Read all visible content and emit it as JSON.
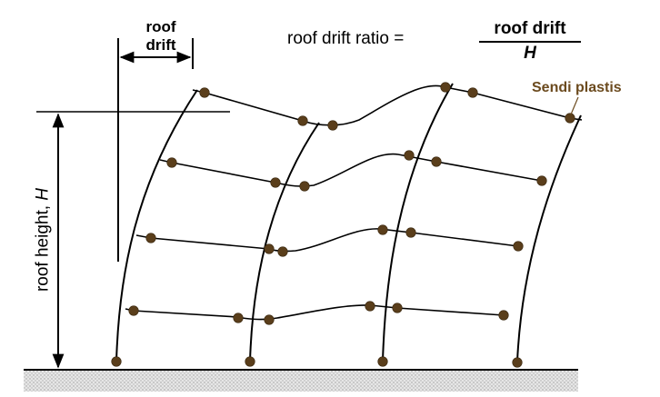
{
  "labels": {
    "roof_drift_line1": "roof",
    "roof_drift_line2": "drift",
    "ratio_prefix": "roof drift ratio =",
    "ratio_numerator": "roof drift",
    "ratio_denominator": "H",
    "plastic_hinge": "Sendi plastis",
    "roof_height_prefix": "roof height, ",
    "roof_height_symbol": "H"
  },
  "colors": {
    "hinge": "#5a3e1b",
    "hinge_label": "#6b4a1e",
    "line": "#000000",
    "ground": "#b5b5b5"
  },
  "structure": {
    "columns": 4,
    "floors": 4,
    "plastic_hinge_count": 28
  }
}
